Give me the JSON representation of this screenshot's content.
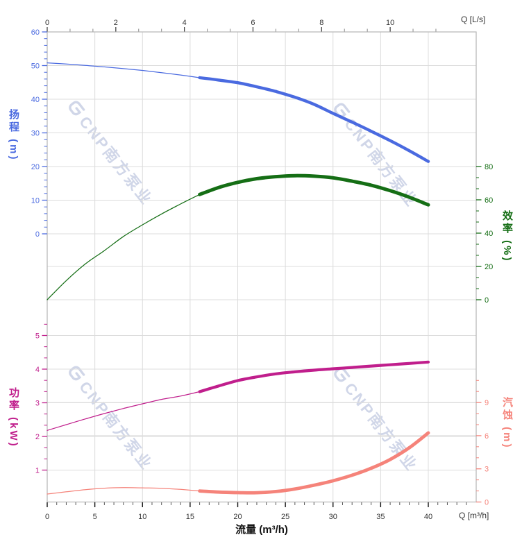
{
  "page": {
    "background": "#ffffff"
  },
  "watermark": {
    "text": "CNP南方泵业",
    "color": "rgba(143,158,200,0.42)"
  },
  "axes": {
    "top_flow": {
      "unit_label": "Q [L/s]",
      "ticks": [
        "0",
        "2",
        "4",
        "6",
        "8",
        "10"
      ]
    },
    "bottom_flow": {
      "unit_label": "Q [m³/h]",
      "title": "流量 (m³/h)",
      "ticks": [
        "0",
        "5",
        "10",
        "15",
        "20",
        "25",
        "30",
        "35",
        "40"
      ]
    },
    "head": {
      "title": "扬程 (m)",
      "color": "#4a6ae0",
      "ticks": [
        "60",
        "50",
        "40",
        "30",
        "20",
        "10",
        "0"
      ]
    },
    "efficiency": {
      "title": "效率 (%)",
      "color": "#156e15",
      "ticks": [
        "80",
        "60",
        "40",
        "20",
        "0"
      ]
    },
    "power": {
      "title": "功率 (kW)",
      "color": "#c01e8c",
      "ticks": [
        "5",
        "4",
        "3",
        "2",
        "1"
      ]
    },
    "npsh": {
      "title": "汽蚀 (m)",
      "color": "#f5837a",
      "ticks": [
        "9",
        "6",
        "3",
        "0"
      ]
    }
  },
  "chart_data": {
    "type": "line",
    "title": "",
    "x": {
      "label": "流量 (m³/h)",
      "secondary_label": "Q [L/s]",
      "unit": "m³/h",
      "range": [
        0,
        45
      ],
      "major_ticks": [
        0,
        5,
        10,
        15,
        20,
        25,
        30,
        35,
        40
      ],
      "secondary_ticks_Ls": [
        0,
        2,
        4,
        6,
        8,
        10
      ]
    },
    "grid": true,
    "note": "All four pump curves are drawn thin from Q=0 to 16 m³/h and thick (duty range) from Q=16 to 40 m³/h",
    "series": [
      {
        "id": "head",
        "name": "扬程",
        "unit": "m",
        "color": "#4a6ae0",
        "axis_side": "left-top",
        "axis_range": [
          0,
          60
        ],
        "thick_from_x": 16,
        "points": [
          [
            0,
            50.8
          ],
          [
            2,
            50.45
          ],
          [
            4,
            50.05
          ],
          [
            6,
            49.6
          ],
          [
            8,
            49.1
          ],
          [
            10,
            48.55
          ],
          [
            12,
            47.9
          ],
          [
            14,
            47.2
          ],
          [
            16,
            46.4
          ],
          [
            18,
            45.7
          ],
          [
            20,
            44.9
          ],
          [
            22,
            43.7
          ],
          [
            24,
            42.3
          ],
          [
            26,
            40.6
          ],
          [
            28,
            38.5
          ],
          [
            30,
            35.8
          ],
          [
            32,
            33.2
          ],
          [
            34,
            30.5
          ],
          [
            36,
            27.7
          ],
          [
            38,
            24.7
          ],
          [
            40,
            21.5
          ]
        ]
      },
      {
        "id": "efficiency",
        "name": "效率",
        "unit": "%",
        "color": "#156e15",
        "axis_side": "right-top",
        "axis_range": [
          0,
          80
        ],
        "thick_from_x": 16,
        "points": [
          [
            0,
            0
          ],
          [
            2,
            11.5
          ],
          [
            4,
            21.5
          ],
          [
            6,
            29.5
          ],
          [
            8,
            38
          ],
          [
            10,
            45
          ],
          [
            12,
            51.5
          ],
          [
            14,
            57.5
          ],
          [
            16,
            63.2
          ],
          [
            18,
            67.4
          ],
          [
            20,
            70.5
          ],
          [
            22,
            72.7
          ],
          [
            24,
            73.9
          ],
          [
            26,
            74.5
          ],
          [
            28,
            74.2
          ],
          [
            30,
            73.2
          ],
          [
            32,
            71.2
          ],
          [
            34,
            68.8
          ],
          [
            36,
            65.5
          ],
          [
            38,
            61.6
          ],
          [
            40,
            57
          ]
        ]
      },
      {
        "id": "power",
        "name": "功率",
        "unit": "kW",
        "color": "#c01e8c",
        "axis_side": "left-bottom",
        "axis_range": [
          1,
          5
        ],
        "thick_from_x": 16,
        "points": [
          [
            0,
            2.18
          ],
          [
            2,
            2.35
          ],
          [
            4,
            2.52
          ],
          [
            6,
            2.68
          ],
          [
            8,
            2.83
          ],
          [
            10,
            2.97
          ],
          [
            12,
            3.1
          ],
          [
            14,
            3.2
          ],
          [
            16,
            3.33
          ],
          [
            18,
            3.5
          ],
          [
            20,
            3.66
          ],
          [
            22,
            3.77
          ],
          [
            24,
            3.86
          ],
          [
            26,
            3.92
          ],
          [
            28,
            3.97
          ],
          [
            30,
            4.01
          ],
          [
            32,
            4.05
          ],
          [
            34,
            4.09
          ],
          [
            36,
            4.13
          ],
          [
            38,
            4.17
          ],
          [
            40,
            4.21
          ]
        ]
      },
      {
        "id": "npsh",
        "name": "汽蚀",
        "unit": "m",
        "color": "#f5837a",
        "axis_side": "right-bottom",
        "axis_range": [
          0,
          9
        ],
        "thick_from_x": 16,
        "points": [
          [
            0,
            0.72
          ],
          [
            2,
            0.92
          ],
          [
            4,
            1.12
          ],
          [
            6,
            1.25
          ],
          [
            8,
            1.3
          ],
          [
            10,
            1.28
          ],
          [
            12,
            1.24
          ],
          [
            14,
            1.14
          ],
          [
            16,
            1.0
          ],
          [
            18,
            0.9
          ],
          [
            20,
            0.85
          ],
          [
            22,
            0.84
          ],
          [
            24,
            0.95
          ],
          [
            26,
            1.18
          ],
          [
            28,
            1.52
          ],
          [
            30,
            1.92
          ],
          [
            32,
            2.42
          ],
          [
            34,
            3.05
          ],
          [
            36,
            3.85
          ],
          [
            38,
            4.9
          ],
          [
            40,
            6.25
          ]
        ]
      }
    ]
  }
}
